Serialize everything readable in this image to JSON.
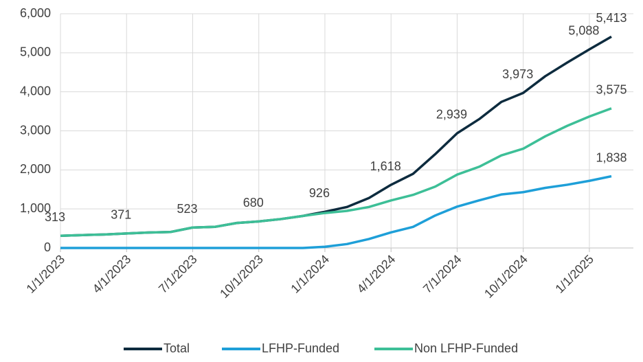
{
  "chart_data": {
    "type": "line",
    "x": [
      "1/1/2023",
      "2/1/2023",
      "3/1/2023",
      "4/1/2023",
      "5/1/2023",
      "6/1/2023",
      "7/1/2023",
      "8/1/2023",
      "9/1/2023",
      "10/1/2023",
      "11/1/2023",
      "12/1/2023",
      "1/1/2024",
      "2/1/2024",
      "3/1/2024",
      "4/1/2024",
      "5/1/2024",
      "6/1/2024",
      "7/1/2024",
      "8/1/2024",
      "9/1/2024",
      "10/1/2024",
      "11/1/2024",
      "12/1/2024",
      "1/1/2025",
      "2/1/2025"
    ],
    "series": [
      {
        "name": "Total",
        "color": "#0d2b3e",
        "values": [
          313,
          330,
          345,
          371,
          395,
          410,
          523,
          540,
          640,
          680,
          740,
          820,
          926,
          1050,
          1280,
          1618,
          1900,
          2400,
          2939,
          3300,
          3740,
          3973,
          4400,
          4750,
          5088,
          5413
        ],
        "value_labels": [
          "313",
          null,
          null,
          "371",
          null,
          null,
          "523",
          null,
          null,
          "680",
          null,
          null,
          "926",
          null,
          null,
          "1,618",
          null,
          null,
          "2,939",
          null,
          null,
          "3,973",
          null,
          null,
          "5,088",
          "5,413"
        ]
      },
      {
        "name": "LFHP-Funded",
        "color": "#1e9fd8",
        "values": [
          0,
          0,
          0,
          0,
          0,
          0,
          0,
          0,
          0,
          0,
          0,
          0,
          30,
          100,
          230,
          400,
          540,
          830,
          1060,
          1220,
          1370,
          1430,
          1540,
          1620,
          1720,
          1838
        ],
        "value_labels": [
          null,
          null,
          null,
          null,
          null,
          null,
          null,
          null,
          null,
          null,
          null,
          null,
          null,
          null,
          null,
          null,
          null,
          null,
          null,
          null,
          null,
          null,
          null,
          null,
          null,
          "1,838"
        ]
      },
      {
        "name": "Non LFHP-Funded",
        "color": "#3dbf97",
        "values": [
          313,
          330,
          345,
          371,
          395,
          410,
          523,
          540,
          640,
          680,
          740,
          820,
          896,
          950,
          1050,
          1218,
          1360,
          1570,
          1879,
          2080,
          2370,
          2543,
          2860,
          3130,
          3368,
          3575
        ],
        "value_labels": [
          null,
          null,
          null,
          null,
          null,
          null,
          null,
          null,
          null,
          null,
          null,
          null,
          null,
          null,
          null,
          null,
          null,
          null,
          null,
          null,
          null,
          null,
          null,
          null,
          null,
          "3,575"
        ]
      }
    ],
    "ylim": [
      0,
      6000
    ],
    "yticks": [
      0,
      {
        "value": 1000,
        "label": "1,000"
      },
      {
        "value": 2000,
        "label": "2,000"
      },
      {
        "value": 3000,
        "label": "3,000"
      },
      {
        "value": 4000,
        "label": "4,000"
      },
      {
        "value": 5000,
        "label": "5,000"
      },
      {
        "value": 6000,
        "label": "6,000"
      }
    ],
    "grid": true,
    "legend": "bottom"
  }
}
